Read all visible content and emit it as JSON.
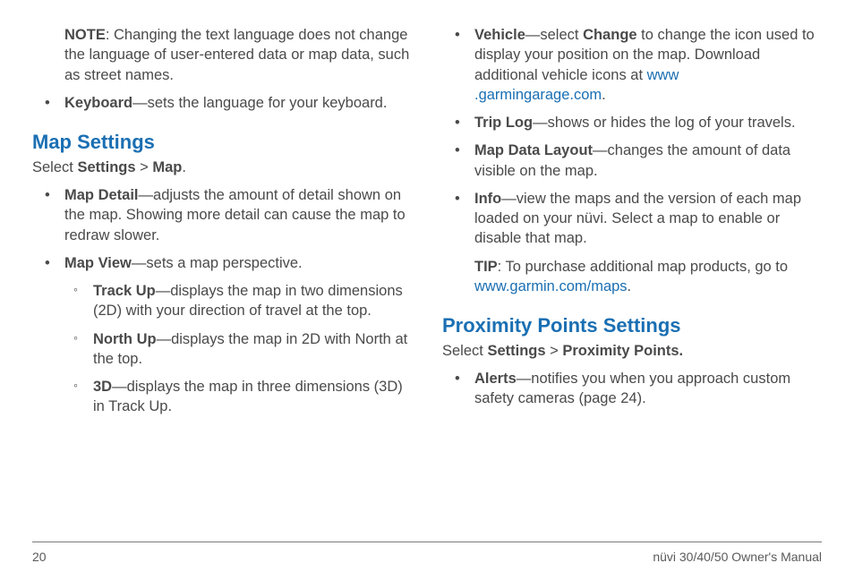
{
  "col1": {
    "note": {
      "label": "NOTE",
      "text": ": Changing the text language does not change the language of user-entered data or map data, such as street names."
    },
    "keyboard": {
      "name": "Keyboard",
      "text": "—sets the language for your keyboard."
    },
    "mapHeading": "Map Settings",
    "path": {
      "pre": "Select ",
      "a": "Settings",
      "sep": " > ",
      "b": "Map",
      "post": "."
    },
    "mapDetail": {
      "name": "Map Detail",
      "text": "—adjusts the amount of detail shown on the map. Showing more detail can cause the map to redraw slower."
    },
    "mapView": {
      "name": "Map View",
      "text": "—sets a map perspective."
    },
    "trackUp": {
      "name": "Track Up",
      "text": "—displays the map in two dimensions (2D) with your direction of travel at the top."
    },
    "northUp": {
      "name": "North Up",
      "text": "—displays the map in 2D with North at the top."
    },
    "threeD": {
      "name": "3D",
      "text": "—displays the map in three dimensions (3D) in Track Up."
    }
  },
  "col2": {
    "vehicle": {
      "name": "Vehicle",
      "pre": "—select ",
      "change": "Change",
      "mid": " to change the icon used to display your position on the map. Download additional vehicle icons at ",
      "link": "www\n.garmingarage.com",
      "post": "."
    },
    "tripLog": {
      "name": "Trip Log",
      "text": "—shows or hides the log of your travels."
    },
    "mapDataLayout": {
      "name": "Map Data Layout",
      "text": "—changes the amount of data visible on the map."
    },
    "info": {
      "name": "Info",
      "text": "—view the maps and the version of each map loaded on your nüvi. Select a map to enable or disable that map."
    },
    "tip": {
      "label": "TIP",
      "text": ": To purchase additional map products, go to ",
      "link": "www.garmin.com/maps",
      "post": "."
    },
    "proxHeading": "Proximity Points Settings",
    "proxPath": {
      "pre": "Select ",
      "a": "Settings",
      "sep": " > ",
      "b": "Proximity Points."
    },
    "alerts": {
      "name": "Alerts",
      "text": "—notifies you when you approach custom safety cameras (page 24)."
    }
  },
  "footer": {
    "pageNum": "20",
    "manual": "nüvi 30/40/50 Owner's Manual"
  },
  "colors": {
    "link": "#1a6fb3",
    "body": "#4a4a4a"
  }
}
